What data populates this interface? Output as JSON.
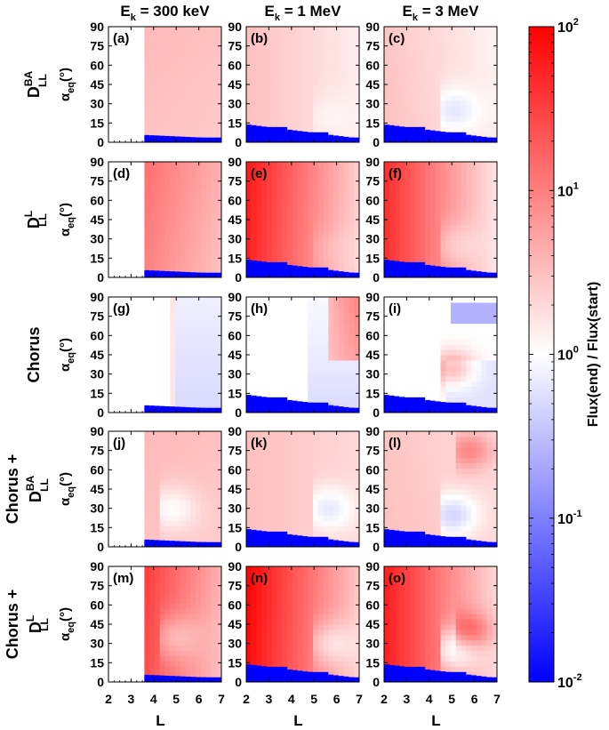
{
  "chart_data": {
    "type": "heatmap",
    "figure": "Multi-panel heatmaps of Flux(end) / Flux(start) versus L and equatorial pitch angle",
    "columns": [
      {
        "title": "E",
        "sub": "k",
        "rest": " = 300 keV"
      },
      {
        "title": "E",
        "sub": "k",
        "rest": " = 1 MeV"
      },
      {
        "title": "E",
        "sub": "k",
        "rest": " = 3 MeV"
      }
    ],
    "rows": [
      {
        "lines": [
          {
            "main": "D",
            "sup": "BA",
            "sub": "LL"
          }
        ]
      },
      {
        "lines": [
          {
            "main": "D",
            "sup": "L",
            "sub": "LL"
          }
        ]
      },
      {
        "lines": [
          {
            "main": "Chorus",
            "sup": "",
            "sub": ""
          }
        ]
      },
      {
        "lines": [
          {
            "main": "Chorus +",
            "sup": "",
            "sub": ""
          },
          {
            "main": "D",
            "sup": "BA",
            "sub": "LL"
          }
        ]
      },
      {
        "lines": [
          {
            "main": "Chorus +",
            "sup": "",
            "sub": ""
          },
          {
            "main": "D",
            "sup": "L",
            "sub": "LL"
          }
        ]
      }
    ],
    "panel_labels": [
      "(a)",
      "(b)",
      "(c)",
      "(d)",
      "(e)",
      "(f)",
      "(g)",
      "(h)",
      "(i)",
      "(j)",
      "(k)",
      "(l)",
      "(m)",
      "(n)",
      "(o)"
    ],
    "xlabel": "L",
    "xlim": [
      2,
      7
    ],
    "xticks": [
      "2",
      "3",
      "4",
      "5",
      "6",
      "7"
    ],
    "ylabel": {
      "main": "α",
      "sub": "eq",
      "rest": "(°)"
    },
    "ylim": [
      0,
      90
    ],
    "yticks": [
      "0",
      "15",
      "30",
      "45",
      "60",
      "75",
      "90"
    ],
    "colorbar": {
      "label": "Flux(end) / Flux(start)",
      "scale": "log",
      "range": [
        0.01,
        100
      ],
      "ticks": [
        {
          "base": "10",
          "exp": "2",
          "value": 100
        },
        {
          "base": "10",
          "exp": "1",
          "value": 10
        },
        {
          "base": "10",
          "exp": "0",
          "value": 1
        },
        {
          "base": "10",
          "exp": "-1",
          "value": 0.1
        },
        {
          "base": "10",
          "exp": "-2",
          "value": 0.01
        }
      ],
      "colormap": [
        "#0000ff",
        "#ffffff",
        "#ff0000"
      ]
    },
    "panels": [
      {
        "id": "a",
        "L_min": 3.5,
        "hi": 3.5,
        "lo": 2.8,
        "grad": 1.2,
        "bl": [
          7,
          3
        ],
        "hole": null,
        "band": null
      },
      {
        "id": "b",
        "L_min": 2.0,
        "hi": 3.2,
        "lo": 1.4,
        "grad": 1.0,
        "bl": [
          14,
          3
        ],
        "hole": {
          "l": 5.6,
          "a": 20,
          "v": 0.7
        },
        "band": null
      },
      {
        "id": "c",
        "L_min": 2.0,
        "hi": 3.0,
        "lo": 1.3,
        "grad": 0.9,
        "bl": [
          14,
          3
        ],
        "hole": {
          "l": 5.0,
          "a": 25,
          "v": 0.35
        },
        "band": null
      },
      {
        "id": "d",
        "L_min": 3.5,
        "hi": 20,
        "lo": 3.5,
        "grad": 1.4,
        "bl": [
          7,
          3
        ],
        "hole": null,
        "band": null
      },
      {
        "id": "e",
        "L_min": 2.0,
        "hi": 60,
        "lo": 2.2,
        "grad": 1.2,
        "bl": [
          14,
          3
        ],
        "hole": {
          "l": 5.6,
          "a": 22,
          "v": 0.7
        },
        "band": null
      },
      {
        "id": "f",
        "L_min": 2.0,
        "hi": 45,
        "lo": 1.6,
        "grad": 1.0,
        "bl": [
          14,
          3
        ],
        "hole": {
          "l": 5.0,
          "a": 25,
          "v": 0.45
        },
        "band": null
      },
      {
        "id": "g",
        "L_min": 3.5,
        "hi": 1.0,
        "lo": 0.4,
        "grad": 1.0,
        "bl": [
          7,
          3
        ],
        "hole": null,
        "band": null
      },
      {
        "id": "h",
        "L_min": 2.0,
        "hi": 1.0,
        "lo": 1.0,
        "grad": 1.0,
        "bl": [
          14,
          3
        ],
        "hole": null,
        "band": null
      },
      {
        "id": "i",
        "L_min": 2.0,
        "hi": 1.0,
        "lo": 1.0,
        "grad": 1.0,
        "bl": [
          14,
          3
        ],
        "hole": null,
        "band": {
          "l": 5.0,
          "a": 35,
          "v": 8
        }
      },
      {
        "id": "j",
        "L_min": 3.5,
        "hi": 3.5,
        "lo": 2.8,
        "grad": 1.2,
        "bl": [
          7,
          3
        ],
        "hole": {
          "l": 4.8,
          "a": 30,
          "v": 0.35
        },
        "band": null
      },
      {
        "id": "k",
        "L_min": 2.0,
        "hi": 3.2,
        "lo": 2.0,
        "grad": 1.0,
        "bl": [
          14,
          3
        ],
        "hole": {
          "l": 5.6,
          "a": 30,
          "v": 0.3
        },
        "band": null
      },
      {
        "id": "l",
        "L_min": 2.0,
        "hi": 3.0,
        "lo": 2.0,
        "grad": 0.9,
        "bl": [
          14,
          3
        ],
        "hole": {
          "l": 5.0,
          "a": 25,
          "v": 0.2
        },
        "band": {
          "l": 5.8,
          "a": 75,
          "v": 6
        }
      },
      {
        "id": "m",
        "L_min": 3.5,
        "hi": 80,
        "lo": 3.5,
        "grad": 1.4,
        "bl": [
          7,
          3
        ],
        "hole": {
          "l": 4.8,
          "a": 35,
          "v": 0.3
        },
        "band": null
      },
      {
        "id": "n",
        "L_min": 2.0,
        "hi": 90,
        "lo": 2.5,
        "grad": 1.2,
        "bl": [
          14,
          3
        ],
        "hole": {
          "l": 5.6,
          "a": 30,
          "v": 0.3
        },
        "band": null
      },
      {
        "id": "o",
        "L_min": 2.0,
        "hi": 60,
        "lo": 2.0,
        "grad": 1.0,
        "bl": [
          14,
          3
        ],
        "hole": {
          "l": 5.0,
          "a": 25,
          "v": 0.15
        },
        "band": {
          "l": 5.8,
          "a": 40,
          "v": 8
        }
      }
    ]
  }
}
